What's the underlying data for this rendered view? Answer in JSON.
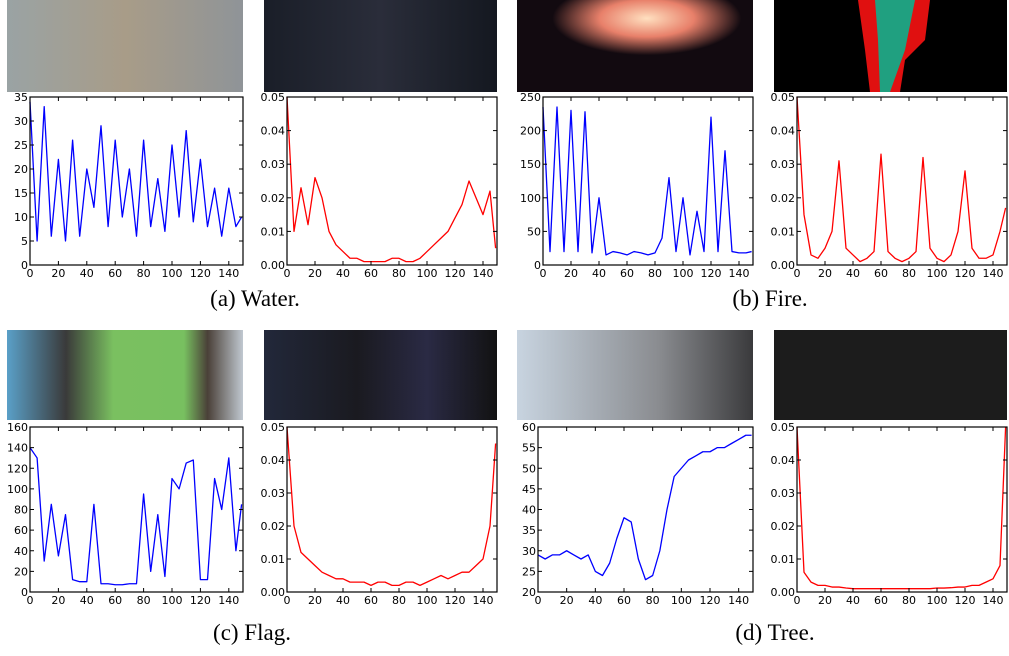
{
  "chart_data": [
    {
      "type": "line",
      "color": "#0000ff",
      "xlim": [
        0,
        150
      ],
      "xticks": [
        0,
        20,
        40,
        60,
        80,
        100,
        120,
        140
      ],
      "ylim": [
        0,
        35
      ],
      "yticks": [
        0,
        5,
        10,
        15,
        20,
        25,
        30,
        35
      ],
      "x": [
        0,
        5,
        10,
        15,
        20,
        25,
        30,
        35,
        40,
        45,
        50,
        55,
        60,
        65,
        70,
        75,
        80,
        85,
        90,
        95,
        100,
        105,
        110,
        115,
        120,
        125,
        130,
        135,
        140,
        145,
        149
      ],
      "values": [
        34,
        5,
        33,
        6,
        22,
        5,
        26,
        6,
        20,
        12,
        29,
        8,
        26,
        10,
        20,
        6,
        26,
        8,
        18,
        7,
        25,
        10,
        28,
        9,
        22,
        8,
        16,
        6,
        16,
        8,
        10
      ]
    },
    {
      "type": "line",
      "color": "#ff0000",
      "xlim": [
        0,
        150
      ],
      "xticks": [
        0,
        20,
        40,
        60,
        80,
        100,
        120,
        140
      ],
      "ylim": [
        0,
        0.05
      ],
      "yticks": [
        {
          "value": 0,
          "label": "0.00"
        },
        {
          "value": 0.01,
          "label": "0.01"
        },
        {
          "value": 0.02,
          "label": "0.02"
        },
        {
          "value": 0.03,
          "label": "0.03"
        },
        {
          "value": 0.04,
          "label": "0.04"
        },
        {
          "value": 0.05,
          "label": "0.05"
        }
      ],
      "x": [
        0,
        5,
        10,
        15,
        20,
        25,
        30,
        35,
        40,
        45,
        50,
        55,
        60,
        65,
        70,
        75,
        80,
        85,
        90,
        95,
        100,
        105,
        110,
        115,
        120,
        125,
        130,
        135,
        140,
        145,
        149
      ],
      "values": [
        0.05,
        0.01,
        0.023,
        0.012,
        0.026,
        0.02,
        0.01,
        0.006,
        0.004,
        0.002,
        0.002,
        0.001,
        0.001,
        0.001,
        0.001,
        0.002,
        0.002,
        0.001,
        0.001,
        0.002,
        0.004,
        0.006,
        0.008,
        0.01,
        0.014,
        0.018,
        0.025,
        0.02,
        0.015,
        0.022,
        0.005
      ]
    },
    {
      "type": "line",
      "color": "#0000ff",
      "xlim": [
        0,
        150
      ],
      "xticks": [
        0,
        20,
        40,
        60,
        80,
        100,
        120,
        140
      ],
      "ylim": [
        0,
        250
      ],
      "yticks": [
        0,
        50,
        100,
        150,
        200,
        250
      ],
      "x": [
        0,
        5,
        10,
        15,
        20,
        25,
        30,
        35,
        40,
        45,
        50,
        55,
        60,
        65,
        70,
        75,
        80,
        85,
        90,
        95,
        100,
        105,
        110,
        115,
        120,
        125,
        130,
        135,
        140,
        145,
        149
      ],
      "values": [
        235,
        20,
        235,
        20,
        230,
        20,
        228,
        18,
        100,
        15,
        20,
        18,
        15,
        20,
        18,
        15,
        18,
        40,
        130,
        20,
        100,
        15,
        80,
        20,
        220,
        20,
        170,
        20,
        18,
        18,
        20
      ]
    },
    {
      "type": "line",
      "color": "#ff0000",
      "xlim": [
        0,
        150
      ],
      "xticks": [
        0,
        20,
        40,
        60,
        80,
        100,
        120,
        140
      ],
      "ylim": [
        0,
        0.05
      ],
      "yticks": [
        {
          "value": 0,
          "label": "0.00"
        },
        {
          "value": 0.01,
          "label": "0.01"
        },
        {
          "value": 0.02,
          "label": "0.02"
        },
        {
          "value": 0.03,
          "label": "0.03"
        },
        {
          "value": 0.04,
          "label": "0.04"
        },
        {
          "value": 0.05,
          "label": "0.05"
        }
      ],
      "x": [
        0,
        5,
        10,
        15,
        20,
        25,
        30,
        35,
        40,
        45,
        50,
        55,
        60,
        65,
        70,
        75,
        80,
        85,
        90,
        95,
        100,
        105,
        110,
        115,
        120,
        125,
        130,
        135,
        140,
        145,
        149
      ],
      "values": [
        0.05,
        0.015,
        0.003,
        0.002,
        0.005,
        0.01,
        0.031,
        0.005,
        0.003,
        0.001,
        0.002,
        0.004,
        0.033,
        0.004,
        0.002,
        0.001,
        0.002,
        0.004,
        0.032,
        0.005,
        0.002,
        0.001,
        0.003,
        0.01,
        0.028,
        0.005,
        0.002,
        0.002,
        0.003,
        0.01,
        0.017
      ]
    },
    {
      "type": "line",
      "color": "#0000ff",
      "xlim": [
        0,
        150
      ],
      "xticks": [
        0,
        20,
        40,
        60,
        80,
        100,
        120,
        140
      ],
      "ylim": [
        0,
        160
      ],
      "yticks": [
        0,
        20,
        40,
        60,
        80,
        100,
        120,
        140,
        160
      ],
      "x": [
        0,
        5,
        10,
        15,
        20,
        25,
        30,
        35,
        40,
        45,
        50,
        55,
        60,
        65,
        70,
        75,
        80,
        85,
        90,
        95,
        100,
        105,
        110,
        115,
        120,
        125,
        130,
        135,
        140,
        145,
        149
      ],
      "values": [
        140,
        130,
        30,
        85,
        35,
        75,
        12,
        10,
        10,
        85,
        8,
        8,
        7,
        7,
        8,
        8,
        95,
        20,
        75,
        15,
        110,
        100,
        125,
        128,
        12,
        12,
        110,
        80,
        130,
        40,
        85
      ]
    },
    {
      "type": "line",
      "color": "#ff0000",
      "xlim": [
        0,
        150
      ],
      "xticks": [
        0,
        20,
        40,
        60,
        80,
        100,
        120,
        140
      ],
      "ylim": [
        0,
        0.05
      ],
      "yticks": [
        {
          "value": 0,
          "label": "0.00"
        },
        {
          "value": 0.01,
          "label": "0.01"
        },
        {
          "value": 0.02,
          "label": "0.02"
        },
        {
          "value": 0.03,
          "label": "0.03"
        },
        {
          "value": 0.04,
          "label": "0.04"
        },
        {
          "value": 0.05,
          "label": "0.05"
        }
      ],
      "x": [
        0,
        5,
        10,
        15,
        20,
        25,
        30,
        35,
        40,
        45,
        50,
        55,
        60,
        65,
        70,
        75,
        80,
        85,
        90,
        95,
        100,
        105,
        110,
        115,
        120,
        125,
        130,
        135,
        140,
        145,
        149
      ],
      "values": [
        0.05,
        0.02,
        0.012,
        0.01,
        0.008,
        0.006,
        0.005,
        0.004,
        0.004,
        0.003,
        0.003,
        0.003,
        0.002,
        0.003,
        0.003,
        0.002,
        0.002,
        0.003,
        0.003,
        0.002,
        0.003,
        0.004,
        0.005,
        0.004,
        0.005,
        0.006,
        0.006,
        0.008,
        0.01,
        0.02,
        0.045
      ]
    },
    {
      "type": "line",
      "color": "#0000ff",
      "xlim": [
        0,
        150
      ],
      "xticks": [
        0,
        20,
        40,
        60,
        80,
        100,
        120,
        140
      ],
      "ylim": [
        20,
        60
      ],
      "yticks": [
        20,
        25,
        30,
        35,
        40,
        45,
        50,
        55,
        60
      ],
      "x": [
        0,
        5,
        10,
        15,
        20,
        25,
        30,
        35,
        40,
        45,
        50,
        55,
        60,
        65,
        70,
        75,
        80,
        85,
        90,
        95,
        100,
        105,
        110,
        115,
        120,
        125,
        130,
        135,
        140,
        145,
        149
      ],
      "values": [
        29,
        28,
        29,
        29,
        30,
        29,
        28,
        29,
        25,
        24,
        27,
        33,
        38,
        37,
        28,
        23,
        24,
        30,
        40,
        48,
        50,
        52,
        53,
        54,
        54,
        55,
        55,
        56,
        57,
        58,
        58
      ]
    },
    {
      "type": "line",
      "color": "#ff0000",
      "xlim": [
        0,
        150
      ],
      "xticks": [
        0,
        20,
        40,
        60,
        80,
        100,
        120,
        140
      ],
      "ylim": [
        0,
        0.05
      ],
      "yticks": [
        {
          "value": 0,
          "label": "0.00"
        },
        {
          "value": 0.01,
          "label": "0.01"
        },
        {
          "value": 0.02,
          "label": "0.02"
        },
        {
          "value": 0.03,
          "label": "0.03"
        },
        {
          "value": 0.04,
          "label": "0.04"
        },
        {
          "value": 0.05,
          "label": "0.05"
        }
      ],
      "x": [
        0,
        5,
        10,
        15,
        20,
        25,
        30,
        35,
        40,
        45,
        50,
        55,
        60,
        65,
        70,
        75,
        80,
        85,
        90,
        95,
        100,
        105,
        110,
        115,
        120,
        125,
        130,
        135,
        140,
        145,
        149
      ],
      "values": [
        0.05,
        0.006,
        0.003,
        0.002,
        0.002,
        0.0015,
        0.0015,
        0.0012,
        0.001,
        0.001,
        0.001,
        0.001,
        0.001,
        0.001,
        0.001,
        0.001,
        0.001,
        0.001,
        0.001,
        0.001,
        0.0012,
        0.0012,
        0.0013,
        0.0015,
        0.0015,
        0.002,
        0.002,
        0.003,
        0.004,
        0.008,
        0.05
      ]
    }
  ],
  "captions": [
    "(a) Water.",
    "(b) Fire.",
    "(c) Flag.",
    "(d) Tree."
  ]
}
